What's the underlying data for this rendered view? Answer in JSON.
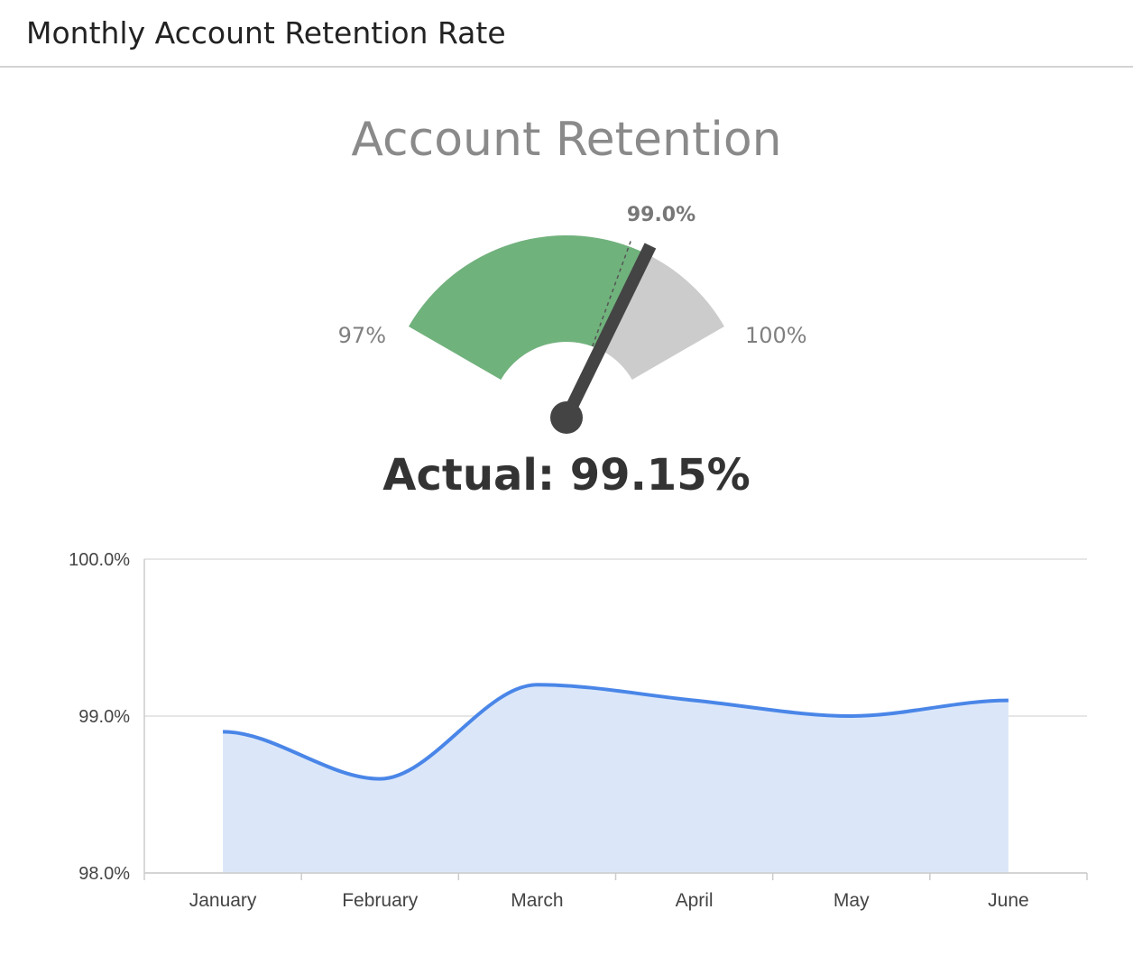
{
  "header": {
    "title": "Monthly Account Retention Rate"
  },
  "colors": {
    "gauge_fill": "#70b27c",
    "gauge_track": "#cccccc",
    "needle": "#444444",
    "line": "#4a86e8",
    "area": "#dbe7f9",
    "grid": "#dddddd"
  },
  "chart_data": [
    {
      "type": "gauge",
      "title": "Account Retention",
      "min": 97,
      "max": 100,
      "min_label": "97%",
      "max_label": "100%",
      "target": 99.0,
      "target_label": "99.0%",
      "value": 99.15,
      "value_label": "Actual: 99.15%"
    },
    {
      "type": "area",
      "categories": [
        "January",
        "February",
        "March",
        "April",
        "May",
        "June"
      ],
      "values": [
        98.9,
        98.6,
        99.2,
        99.1,
        99.0,
        99.1
      ],
      "ylim": [
        98.0,
        100.0
      ],
      "yticks": [
        "98.0%",
        "99.0%",
        "100.0%"
      ],
      "grid": true
    }
  ]
}
